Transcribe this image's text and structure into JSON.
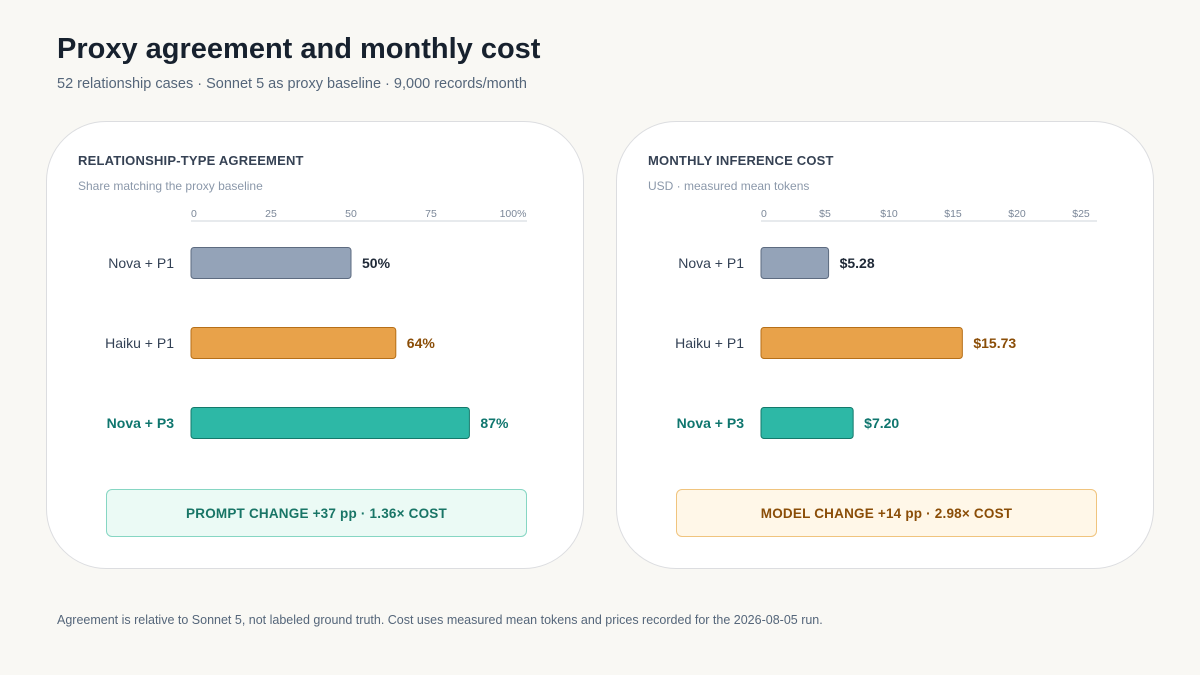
{
  "title": "Proxy agreement and monthly cost",
  "subtitle": "52 relationship cases · Sonnet 5 as proxy baseline · 9,000 records/month",
  "footnote": "Agreement is relative to Sonnet 5, not labeled ground truth. Cost uses measured mean tokens and prices recorded for the 2026-08-05 run.",
  "colors": {
    "nova_p1": "#94a3b8",
    "haiku_p1": "#e8a24a",
    "nova_p3": "#2db8a6",
    "label_default": "#334155",
    "label_emphasis": "#0f766e",
    "value_amber": "#8a4d07"
  },
  "chart_data": [
    {
      "type": "bar",
      "orientation": "horizontal",
      "title": "RELATIONSHIP-TYPE AGREEMENT",
      "subtitle": "Share matching the proxy baseline",
      "categories": [
        "Nova + P1",
        "Haiku + P1",
        "Nova + P3"
      ],
      "values": [
        50,
        64,
        87
      ],
      "value_labels": [
        "50%",
        "64%",
        "87%"
      ],
      "xlim": [
        0,
        100
      ],
      "ticks": [
        0,
        25,
        50,
        75,
        100
      ],
      "tick_labels": [
        "0",
        "25",
        "50",
        "75",
        "100%"
      ],
      "callout": "PROMPT CHANGE +37 pp · 1.36× COST"
    },
    {
      "type": "bar",
      "orientation": "horizontal",
      "title": "MONTHLY INFERENCE COST",
      "subtitle": "USD · measured mean tokens",
      "categories": [
        "Nova + P1",
        "Haiku + P1",
        "Nova + P3"
      ],
      "values": [
        5.28,
        15.73,
        7.2
      ],
      "value_labels": [
        "$5.28",
        "$15.73",
        "$7.20"
      ],
      "xlim": [
        0,
        25
      ],
      "ticks": [
        0,
        5,
        10,
        15,
        20,
        25
      ],
      "tick_labels": [
        "0",
        "$5",
        "$10",
        "$15",
        "$20",
        "$25"
      ],
      "callout": "MODEL CHANGE +14 pp · 2.98× COST"
    }
  ]
}
